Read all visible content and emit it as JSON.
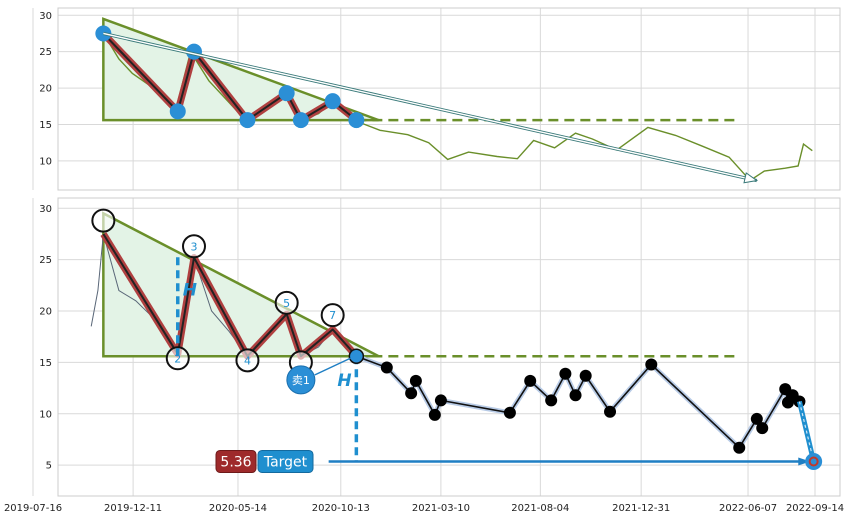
{
  "chart_data": [
    {
      "type": "line",
      "panel": "top",
      "ylim": [
        6,
        31
      ],
      "yticks": [
        "10",
        "15",
        "20",
        "25",
        "30"
      ],
      "grid": true,
      "price_series": [
        {
          "date": "2019-10-28",
          "v": 27.5
        },
        {
          "date": "2019-11-20",
          "v": 24
        },
        {
          "date": "2019-12-10",
          "v": 22
        },
        {
          "date": "2020-01-10",
          "v": 20
        },
        {
          "date": "2020-02-12",
          "v": 17
        },
        {
          "date": "2020-03-05",
          "v": 25
        },
        {
          "date": "2020-04-01",
          "v": 21
        },
        {
          "date": "2020-05-01",
          "v": 18
        },
        {
          "date": "2020-05-25",
          "v": 15.6
        },
        {
          "date": "2020-06-20",
          "v": 17
        },
        {
          "date": "2020-07-25",
          "v": 19.3
        },
        {
          "date": "2020-08-15",
          "v": 15.6
        },
        {
          "date": "2020-09-10",
          "v": 16.5
        },
        {
          "date": "2020-10-01",
          "v": 18.2
        },
        {
          "date": "2020-11-01",
          "v": 15.6
        },
        {
          "date": "2020-12-10",
          "v": 14.2
        },
        {
          "date": "2021-01-20",
          "v": 13.6
        },
        {
          "date": "2021-02-20",
          "v": 12.5
        },
        {
          "date": "2021-03-20",
          "v": 10.2
        },
        {
          "date": "2021-04-20",
          "v": 11.2
        },
        {
          "date": "2021-06-01",
          "v": 10.6
        },
        {
          "date": "2021-07-01",
          "v": 10.3
        },
        {
          "date": "2021-07-25",
          "v": 12.8
        },
        {
          "date": "2021-08-25",
          "v": 11.8
        },
        {
          "date": "2021-09-25",
          "v": 13.8
        },
        {
          "date": "2021-10-20",
          "v": 13
        },
        {
          "date": "2021-11-25",
          "v": 11.5
        },
        {
          "date": "2022-01-10",
          "v": 14.6
        },
        {
          "date": "2022-02-20",
          "v": 13.5
        },
        {
          "date": "2022-04-01",
          "v": 12
        },
        {
          "date": "2022-05-10",
          "v": 10.5
        },
        {
          "date": "2022-06-10",
          "v": 7.3
        },
        {
          "date": "2022-07-01",
          "v": 8.6
        },
        {
          "date": "2022-08-01",
          "v": 9
        },
        {
          "date": "2022-08-20",
          "v": 9.3
        },
        {
          "date": "2022-08-28",
          "v": 12.3
        },
        {
          "date": "2022-09-10",
          "v": 11.4
        }
      ],
      "triangle": [
        {
          "date": "2019-10-28",
          "v": 29.5
        },
        {
          "date": "2020-12-08",
          "v": 15.6
        },
        {
          "date": "2019-10-28",
          "v": 15.6
        }
      ],
      "pattern_points": [
        {
          "date": "2019-10-28",
          "v": 27.5
        },
        {
          "date": "2020-02-15",
          "v": 16.8
        },
        {
          "date": "2020-03-10",
          "v": 25
        },
        {
          "date": "2020-05-28",
          "v": 15.6
        },
        {
          "date": "2020-07-25",
          "v": 19.3
        },
        {
          "date": "2020-08-15",
          "v": 15.6
        },
        {
          "date": "2020-10-01",
          "v": 18.2
        },
        {
          "date": "2020-11-05",
          "v": 15.6
        }
      ],
      "dashed_level": {
        "from": "2020-11-05",
        "to": "2022-05-20",
        "v": 15.6
      },
      "arrow": {
        "from": {
          "date": "2019-10-28",
          "v": 27.5
        },
        "to": {
          "date": "2022-06-20",
          "v": 7.3
        }
      }
    },
    {
      "type": "line",
      "panel": "bottom",
      "ylim": [
        2,
        31
      ],
      "yticks": [
        "5",
        "10",
        "15",
        "20",
        "25",
        "30"
      ],
      "grid": true,
      "x_tick_labels": [
        "2019-07-16",
        "2019-12-11",
        "2020-05-14",
        "2020-10-13",
        "2021-03-10",
        "2021-08-04",
        "2021-12-31",
        "2022-06-07",
        "2022-09-14"
      ],
      "price_series": [
        {
          "date": "2019-10-10",
          "v": 18.5
        },
        {
          "date": "2019-10-20",
          "v": 22
        },
        {
          "date": "2019-10-28",
          "v": 27.5
        },
        {
          "date": "2019-11-20",
          "v": 22
        },
        {
          "date": "2019-12-15",
          "v": 21
        },
        {
          "date": "2020-01-15",
          "v": 19
        },
        {
          "date": "2020-02-15",
          "v": 16
        },
        {
          "date": "2020-03-10",
          "v": 25.2
        },
        {
          "date": "2020-04-05",
          "v": 20
        },
        {
          "date": "2020-05-01",
          "v": 18
        },
        {
          "date": "2020-05-28",
          "v": 15.6
        },
        {
          "date": "2020-06-25",
          "v": 17.5
        },
        {
          "date": "2020-07-25",
          "v": 19.7
        },
        {
          "date": "2020-08-15",
          "v": 15.6
        },
        {
          "date": "2020-09-10",
          "v": 16.5
        },
        {
          "date": "2020-10-01",
          "v": 18.2
        },
        {
          "date": "2020-11-01",
          "v": 15.6
        }
      ],
      "triangle": [
        {
          "date": "2019-10-28",
          "v": 29.5
        },
        {
          "date": "2020-12-08",
          "v": 15.6
        },
        {
          "date": "2019-10-28",
          "v": 15.6
        }
      ],
      "pattern_points": [
        {
          "date": "2019-10-28",
          "v": 27.5,
          "label": ""
        },
        {
          "date": "2020-02-15",
          "v": 15.8,
          "label": "2"
        },
        {
          "date": "2020-03-10",
          "v": 25.2,
          "label": "3"
        },
        {
          "date": "2020-05-28",
          "v": 15.6,
          "label": "4"
        },
        {
          "date": "2020-07-25",
          "v": 19.7,
          "label": "5"
        },
        {
          "date": "2020-08-15",
          "v": 15.6,
          "label": ""
        },
        {
          "date": "2020-10-01",
          "v": 18.2,
          "label": "7"
        },
        {
          "date": "2020-11-05",
          "v": 15.6,
          "label": ""
        }
      ],
      "circle_markers": [
        {
          "date": "2019-10-28",
          "v": 28.8,
          "label": ""
        },
        {
          "date": "2020-02-15",
          "v": 15.4,
          "label": "2"
        },
        {
          "date": "2020-03-10",
          "v": 26.3,
          "label": "3"
        },
        {
          "date": "2020-05-28",
          "v": 15.2,
          "label": "4"
        },
        {
          "date": "2020-07-25",
          "v": 20.8,
          "label": "5"
        },
        {
          "date": "2020-08-15",
          "v": 15.0,
          "label": ""
        },
        {
          "date": "2020-10-01",
          "v": 19.6,
          "label": "7"
        }
      ],
      "dashed_level": {
        "from": "2020-11-05",
        "to": "2022-05-25",
        "v": 15.6
      },
      "continuation": [
        {
          "date": "2020-11-05",
          "v": 15.6
        },
        {
          "date": "2020-12-20",
          "v": 14.5
        },
        {
          "date": "2021-01-25",
          "v": 12
        },
        {
          "date": "2021-02-01",
          "v": 13.2
        },
        {
          "date": "2021-03-01",
          "v": 9.9
        },
        {
          "date": "2021-03-10",
          "v": 11.3
        },
        {
          "date": "2021-06-20",
          "v": 10.1
        },
        {
          "date": "2021-07-20",
          "v": 13.2
        },
        {
          "date": "2021-08-20",
          "v": 11.3
        },
        {
          "date": "2021-09-10",
          "v": 13.9
        },
        {
          "date": "2021-09-25",
          "v": 11.8
        },
        {
          "date": "2021-10-10",
          "v": 13.7
        },
        {
          "date": "2021-11-15",
          "v": 10.2
        },
        {
          "date": "2022-01-15",
          "v": 14.8
        },
        {
          "date": "2022-05-25",
          "v": 6.7
        },
        {
          "date": "2022-06-20",
          "v": 9.5
        },
        {
          "date": "2022-06-28",
          "v": 8.6
        },
        {
          "date": "2022-08-01",
          "v": 12.4
        },
        {
          "date": "2022-08-05",
          "v": 11.1
        },
        {
          "date": "2022-08-12",
          "v": 11.8
        },
        {
          "date": "2022-08-22",
          "v": 11.2
        }
      ],
      "breakout": {
        "date": "2020-11-05",
        "v": 15.6
      },
      "height_line": {
        "date": "2020-02-15",
        "from": 15.6,
        "to": 25.5
      },
      "projection_line": {
        "date": "2020-11-05",
        "from": 15.6,
        "to": 5.36
      },
      "target_line": {
        "from": "2020-11-01",
        "to": "2022-09-10",
        "v": 5.36
      },
      "target_point": {
        "date": "2022-09-12",
        "v": 5.36
      },
      "forecast_from": {
        "date": "2022-08-22",
        "v": 11.2
      },
      "sell_marker": {
        "date": "2020-08-15",
        "v": 13.3,
        "label": "卖1"
      },
      "h_labels": [
        "H",
        "H"
      ],
      "target_label": "Target",
      "target_value": "5.36"
    }
  ]
}
